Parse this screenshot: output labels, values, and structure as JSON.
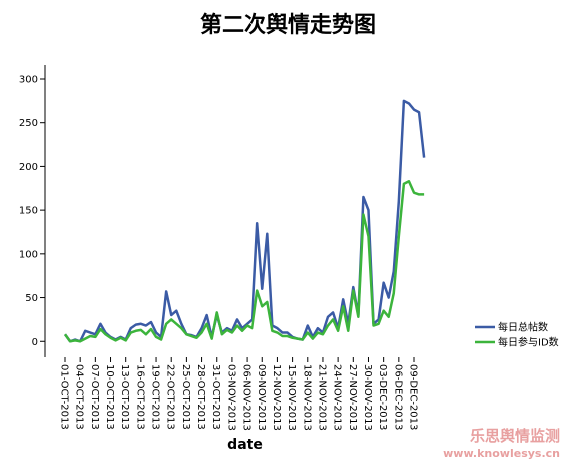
{
  "chart_data": {
    "type": "line",
    "title": "第二次舆情走势图",
    "x_label": "date",
    "categories": [
      "01-OCT-2013",
      null,
      null,
      "04-OCT-2013",
      null,
      null,
      "07-OCT-2013",
      null,
      null,
      "10-OCT-2013",
      null,
      null,
      "13-OCT-2013",
      null,
      null,
      "16-OCT-2013",
      null,
      null,
      "19-OCT-2013",
      null,
      null,
      "22-OCT-2013",
      null,
      null,
      "25-OCT-2013",
      null,
      null,
      "28-OCT-2013",
      null,
      null,
      "31-OCT-2013",
      null,
      null,
      "03-NOV-2013",
      null,
      null,
      "06-NOV-2013",
      null,
      null,
      "09-NOV-2013",
      null,
      null,
      "12-NOV-2013",
      null,
      null,
      "15-NOV-2013",
      null,
      null,
      "18-NOV-2013",
      null,
      null,
      "21-NOV-2013",
      null,
      null,
      "24-NOV-2013",
      null,
      null,
      "27-NOV-2013",
      null,
      null,
      "30-NOV-2013",
      null,
      null,
      "03-DEC-2013",
      null,
      null,
      "06-DEC-2013",
      null,
      null,
      "09-DEC-2013",
      null,
      null
    ],
    "series": [
      {
        "name": "每日总帖数",
        "color": "#3b5ba5",
        "values": [
          8,
          0,
          2,
          0,
          12,
          10,
          8,
          20,
          10,
          5,
          2,
          5,
          2,
          15,
          19,
          20,
          18,
          22,
          10,
          5,
          57,
          30,
          35,
          20,
          8,
          7,
          5,
          15,
          30,
          5,
          30,
          10,
          15,
          12,
          25,
          15,
          20,
          25,
          135,
          60,
          123,
          18,
          15,
          10,
          10,
          5,
          3,
          2,
          18,
          5,
          15,
          10,
          28,
          33,
          15,
          48,
          20,
          62,
          30,
          165,
          150,
          20,
          25,
          67,
          50,
          80,
          160,
          275,
          272,
          265,
          262,
          210
        ]
      },
      {
        "name": "每日参与ID数",
        "color": "#3cb43c",
        "values": [
          8,
          0,
          1,
          0,
          3,
          6,
          5,
          14,
          8,
          4,
          1,
          4,
          1,
          10,
          12,
          13,
          8,
          14,
          5,
          2,
          20,
          25,
          20,
          15,
          8,
          6,
          4,
          10,
          20,
          3,
          33,
          8,
          13,
          10,
          18,
          12,
          18,
          15,
          58,
          40,
          45,
          12,
          10,
          6,
          6,
          4,
          3,
          2,
          10,
          3,
          10,
          8,
          18,
          25,
          12,
          40,
          12,
          58,
          28,
          145,
          120,
          18,
          20,
          35,
          28,
          55,
          120,
          180,
          183,
          170,
          168,
          168
        ]
      }
    ],
    "ylim": [
      -18,
      316
    ],
    "yticks": [
      0,
      50,
      100,
      150,
      200,
      250,
      300
    ],
    "watermark": [
      "乐思舆情监测",
      "www.knowlesys.cn"
    ]
  }
}
